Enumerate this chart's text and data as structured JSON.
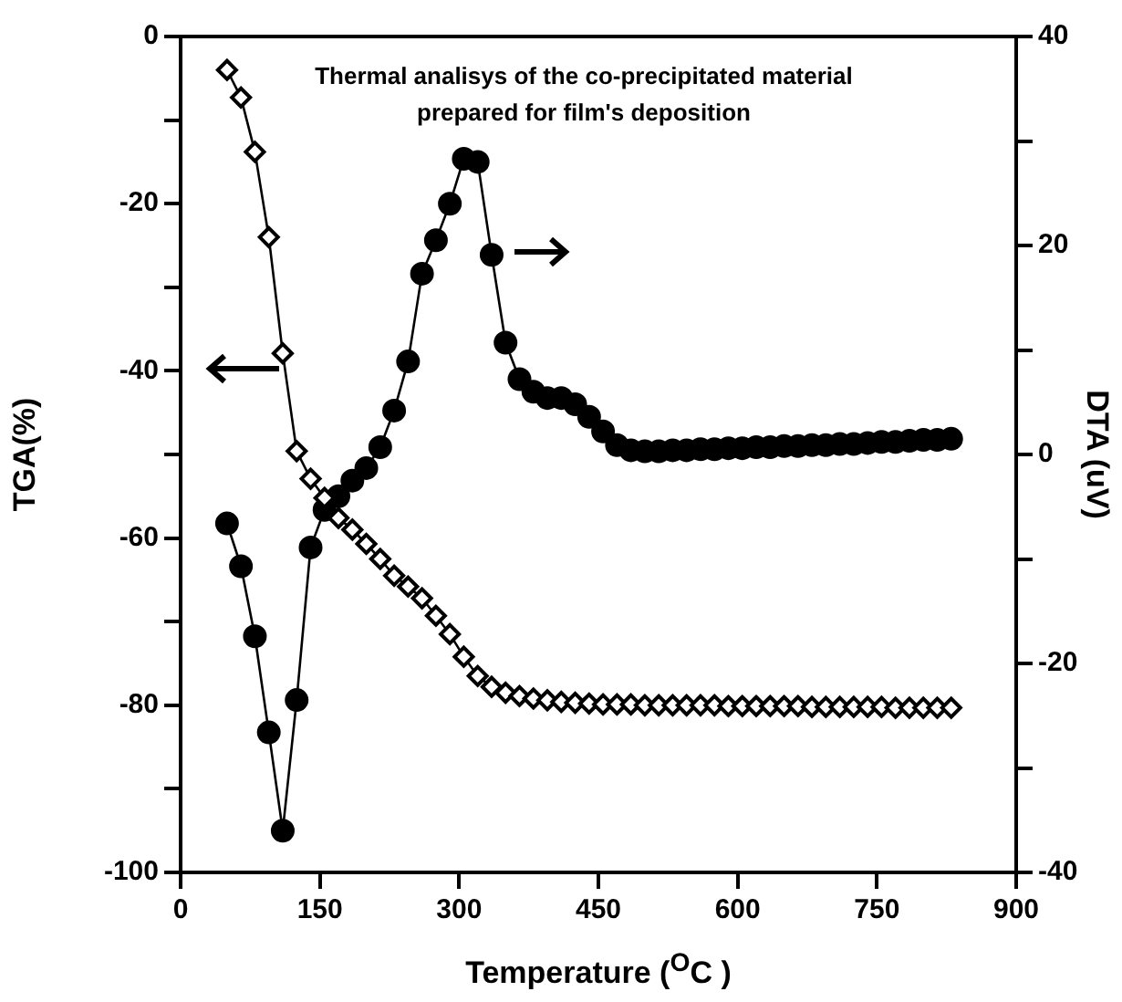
{
  "chart_data": {
    "type": "line",
    "title": "Thermal analisys of the co-precipitated material prepared for film's deposition",
    "xlabel": "Temperature ($^{O}$C )",
    "ylabel": "TGA(%)",
    "y2label": "DTA (uV)",
    "x": [
      50,
      65,
      80,
      95,
      110,
      125,
      140,
      155,
      170,
      185,
      200,
      215,
      230,
      245,
      260,
      275,
      290,
      305,
      320,
      335,
      350,
      365,
      380,
      395,
      410,
      425,
      440,
      455,
      470,
      485,
      500,
      515,
      530,
      545,
      560,
      575,
      590,
      605,
      620,
      635,
      650,
      665,
      680,
      695,
      710,
      725,
      740,
      755,
      770,
      785,
      800,
      815,
      830
    ],
    "series": [
      {
        "color": "#000000",
        "marker": "diamond",
        "values": [
          -4,
          -7.3,
          -13.8,
          -24,
          -37.9,
          -49.6,
          -52.9,
          -55.2,
          -57.6,
          -59,
          -60.7,
          -62.5,
          -64.5,
          -65.8,
          -67.2,
          -69.3,
          -71.5,
          -74.2,
          -76.5,
          -77.8,
          -78.5,
          -78.9,
          -79.2,
          -79.4,
          -79.6,
          -79.7,
          -79.8,
          -79.9,
          -79.9,
          -79.9,
          -80,
          -80,
          -80,
          -80,
          -80,
          -80,
          -80.1,
          -80.1,
          -80.1,
          -80.1,
          -80.1,
          -80.1,
          -80.2,
          -80.2,
          -80.2,
          -80.2,
          -80.2,
          -80.2,
          -80.3,
          -80.3,
          -80.3,
          -80.3,
          -80.3
        ]
      },
      {
        "color": "#000000",
        "marker": "circle",
        "axis": "y2",
        "values": [
          -6.6,
          -10.7,
          -17.4,
          -26.6,
          -36,
          -23.5,
          -8.9,
          -5.3,
          -4,
          -2.5,
          -1.3,
          0.7,
          4.2,
          8.9,
          17.3,
          20.5,
          24,
          28.3,
          28,
          19.1,
          10.7,
          7.2,
          6,
          5.4,
          5.4,
          4.8,
          3.6,
          2.2,
          0.9,
          0.4,
          0.3,
          0.3,
          0.4,
          0.4,
          0.5,
          0.5,
          0.6,
          0.6,
          0.7,
          0.7,
          0.8,
          0.8,
          0.9,
          0.9,
          1,
          1,
          1.1,
          1.2,
          1.2,
          1.3,
          1.4,
          1.4,
          1.5
        ]
      }
    ],
    "xlim": [
      0,
      900
    ],
    "xticks": [
      0,
      150,
      300,
      450,
      600,
      750,
      900
    ],
    "ylim": [
      -100,
      0
    ],
    "yticks": [
      -100,
      {
        "value": -90,
        "label": null
      },
      -80,
      {
        "value": -70,
        "label": null
      },
      -60,
      {
        "value": -50,
        "label": null
      },
      -40,
      {
        "value": -30,
        "label": null
      },
      -20,
      {
        "value": -10,
        "label": null
      },
      0
    ],
    "y2lim": [
      -40,
      40
    ],
    "y2ticks": [
      -40,
      {
        "value": -30,
        "label": null
      },
      -20,
      {
        "value": -10,
        "label": null
      },
      0,
      {
        "value": 10,
        "label": null
      },
      20,
      {
        "value": 30,
        "label": null
      },
      40
    ],
    "grid": false,
    "legend": false
  }
}
